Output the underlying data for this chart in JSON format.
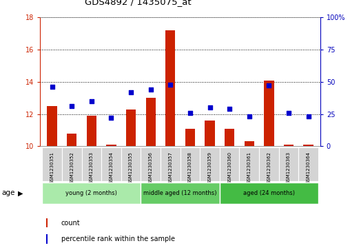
{
  "title": "GDS4892 / 1435075_at",
  "samples": [
    "GSM1230351",
    "GSM1230352",
    "GSM1230353",
    "GSM1230354",
    "GSM1230355",
    "GSM1230356",
    "GSM1230357",
    "GSM1230358",
    "GSM1230359",
    "GSM1230360",
    "GSM1230361",
    "GSM1230362",
    "GSM1230363",
    "GSM1230364"
  ],
  "count_values": [
    12.5,
    10.8,
    11.9,
    10.1,
    12.3,
    13.0,
    17.2,
    11.1,
    11.6,
    11.1,
    10.3,
    14.1,
    10.1,
    10.1
  ],
  "percentile_values": [
    46,
    31,
    35,
    22,
    42,
    44,
    48,
    26,
    30,
    29,
    23,
    47,
    26,
    23
  ],
  "count_base": 10.0,
  "ylim_left": [
    10,
    18
  ],
  "ylim_right": [
    0,
    100
  ],
  "yticks_left": [
    10,
    12,
    14,
    16,
    18
  ],
  "yticks_right": [
    0,
    25,
    50,
    75,
    100
  ],
  "groups": [
    {
      "label": "young (2 months)",
      "start": 0,
      "end": 5
    },
    {
      "label": "middle aged (12 months)",
      "start": 5,
      "end": 9
    },
    {
      "label": "aged (24 months)",
      "start": 9,
      "end": 14
    }
  ],
  "group_colors": [
    "#aaeaaa",
    "#66cc66",
    "#44bb44"
  ],
  "bar_color": "#CC2200",
  "dot_color": "#0000CC",
  "bar_width": 0.5,
  "bg_color": "#FFFFFF",
  "axis_color_left": "#CC2200",
  "axis_color_right": "#0000BB"
}
